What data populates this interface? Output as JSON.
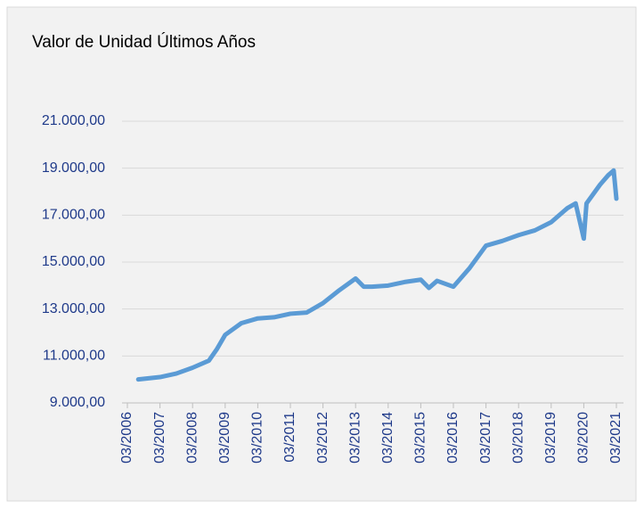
{
  "chart_data": {
    "type": "line",
    "title": "Valor de Unidad Últimos Años",
    "x": [
      "07/2006",
      "03/2007",
      "09/2007",
      "03/2008",
      "09/2008",
      "12/2008",
      "03/2009",
      "09/2009",
      "03/2010",
      "09/2010",
      "03/2011",
      "09/2011",
      "03/2012",
      "09/2012",
      "03/2013",
      "06/2013",
      "09/2013",
      "03/2014",
      "09/2014",
      "03/2015",
      "06/2015",
      "09/2015",
      "03/2016",
      "09/2016",
      "03/2017",
      "09/2017",
      "03/2018",
      "09/2018",
      "03/2019",
      "09/2019",
      "12/2019",
      "03/2020",
      "04/2020",
      "09/2020",
      "12/2020",
      "02/2021",
      "03/2021"
    ],
    "series": [
      {
        "name": "Valor de Unidad",
        "color": "#5b9bd5",
        "values": [
          10000,
          10100,
          10250,
          10500,
          10800,
          11300,
          11900,
          12400,
          12600,
          12650,
          12800,
          12850,
          13250,
          13800,
          14300,
          13950,
          13950,
          14000,
          14150,
          14250,
          13900,
          14200,
          13950,
          14750,
          15700,
          15900,
          16150,
          16350,
          16700,
          17300,
          17500,
          16000,
          17500,
          18300,
          18700,
          18900,
          17700
        ]
      }
    ],
    "xlim": [
      "03/2006",
      "03/2021"
    ],
    "xticks": [
      "03/2006",
      "03/2007",
      "03/2008",
      "03/2009",
      "03/2010",
      "03/2011",
      "03/2012",
      "03/2013",
      "03/2014",
      "03/2015",
      "03/2016",
      "03/2017",
      "03/2018",
      "03/2019",
      "03/2020",
      "03/2021"
    ],
    "ylim": [
      9000,
      21000
    ],
    "yticks": [
      {
        "value": 9000,
        "label": "9.000,00"
      },
      {
        "value": 11000,
        "label": "11.000,00"
      },
      {
        "value": 13000,
        "label": "13.000,00"
      },
      {
        "value": 15000,
        "label": "15.000,00"
      },
      {
        "value": 17000,
        "label": "17.000,00"
      },
      {
        "value": 19000,
        "label": "19.000,00"
      },
      {
        "value": 21000,
        "label": "21.000,00"
      }
    ],
    "grid": true
  }
}
